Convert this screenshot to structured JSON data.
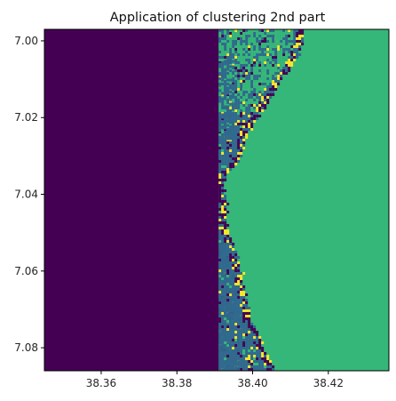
{
  "chart_data": {
    "type": "heatmap",
    "title": "Application of clustering 2nd part",
    "xlabel": "",
    "ylabel": "",
    "xlim": [
      38.345,
      38.436
    ],
    "ylim": [
      7.086,
      6.997
    ],
    "x_ticks": [
      38.36,
      38.38,
      38.4,
      38.42
    ],
    "x_tick_labels": [
      "38.36",
      "38.38",
      "38.40",
      "38.42"
    ],
    "y_ticks": [
      7.0,
      7.02,
      7.04,
      7.06,
      7.08
    ],
    "y_tick_labels": [
      "7.00",
      "7.02",
      "7.04",
      "7.06",
      "7.08"
    ],
    "colormap": "viridis",
    "grid": false,
    "legend": "none",
    "clusters": [
      {
        "id": 0,
        "color": "#440154"
      },
      {
        "id": 1,
        "color": "#31688e"
      },
      {
        "id": 2,
        "color": "#35b779"
      },
      {
        "id": 3,
        "color": "#fde725"
      }
    ],
    "regions": {
      "left_block_x_range": [
        38.345,
        38.391
      ],
      "left_block_cluster": 0,
      "right_block_cluster": 2,
      "boundary_x": 38.391
    },
    "coast_profile": [
      {
        "y": 6.997,
        "x": 38.4125
      },
      {
        "y": 7.004,
        "x": 38.411
      },
      {
        "y": 7.01,
        "x": 38.4065
      },
      {
        "y": 7.016,
        "x": 38.403
      },
      {
        "y": 7.02,
        "x": 38.4
      },
      {
        "y": 7.026,
        "x": 38.397
      },
      {
        "y": 7.03,
        "x": 38.396
      },
      {
        "y": 7.034,
        "x": 38.3925
      },
      {
        "y": 7.038,
        "x": 38.391
      },
      {
        "y": 7.043,
        "x": 38.392
      },
      {
        "y": 7.05,
        "x": 38.392
      },
      {
        "y": 7.056,
        "x": 38.395
      },
      {
        "y": 7.062,
        "x": 38.3965
      },
      {
        "y": 7.068,
        "x": 38.397
      },
      {
        "y": 7.074,
        "x": 38.399
      },
      {
        "y": 7.08,
        "x": 38.402
      },
      {
        "y": 7.086,
        "x": 38.4045
      }
    ],
    "inland_patches": [
      {
        "y": [
          6.997,
          7.018
        ],
        "x": [
          38.391,
          38.41
        ],
        "cluster": 2
      },
      {
        "y": [
          7.005,
          7.026
        ],
        "x": [
          38.391,
          38.395
        ],
        "cluster": 1
      },
      {
        "y": [
          7.045,
          7.086
        ],
        "x": [
          38.391,
          38.397
        ],
        "cluster": 1
      }
    ]
  }
}
